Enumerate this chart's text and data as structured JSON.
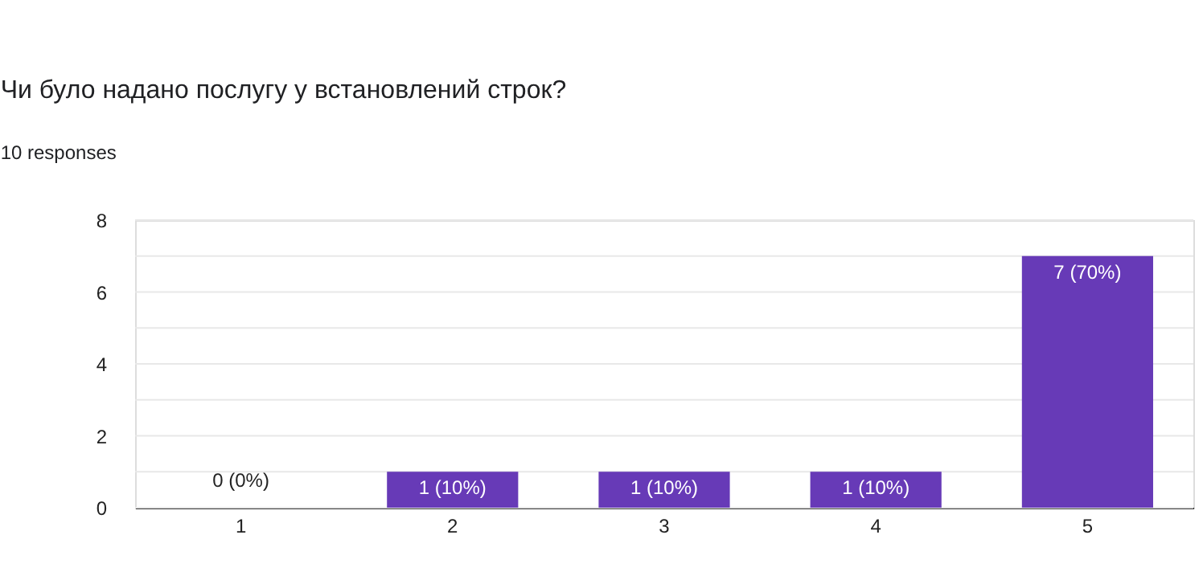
{
  "chart_data": {
    "type": "bar",
    "title": "Чи було надано послугу у встановлений строк?",
    "subtitle": "10 responses",
    "categories": [
      "1",
      "2",
      "3",
      "4",
      "5"
    ],
    "values": [
      0,
      1,
      1,
      1,
      7
    ],
    "value_labels": [
      "0 (0%)",
      "1 (10%)",
      "1 (10%)",
      "1 (10%)",
      "7 (70%)"
    ],
    "color": "#673ab7",
    "ylim": [
      0,
      8
    ],
    "yticks": [
      0,
      {
        "value": 1,
        "label": null
      },
      2,
      {
        "value": 3,
        "label": null
      },
      4,
      {
        "value": 5,
        "label": null
      },
      6,
      {
        "value": 7,
        "label": null
      },
      8
    ],
    "grid": true
  }
}
